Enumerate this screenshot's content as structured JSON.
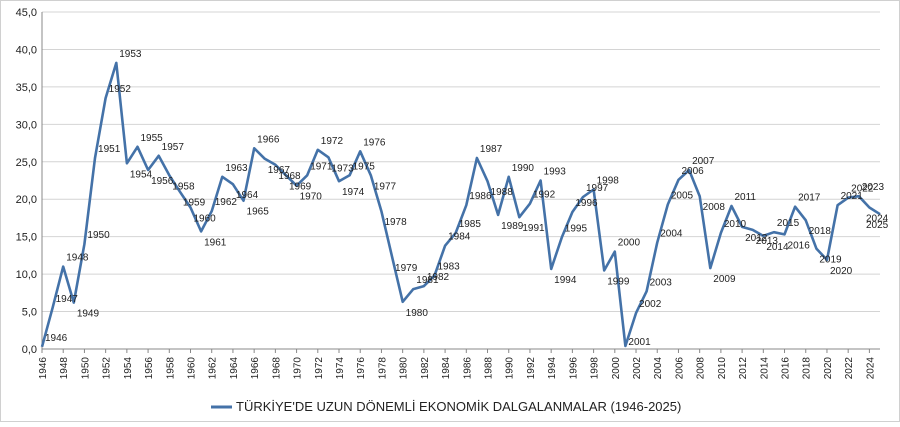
{
  "chart_data": {
    "type": "line",
    "legend": {
      "label": "TÜRKİYE'DE UZUN DÖNEMLİ EKONOMİK DALGALANMALAR (1946-2025)",
      "placement": "bottom-center"
    },
    "color": "#4472a8",
    "grid": true,
    "ylim": [
      0,
      45
    ],
    "y_ticks": [
      "0,0",
      "5,0",
      "10,0",
      "15,0",
      "20,0",
      "25,0",
      "30,0",
      "35,0",
      "40,0",
      "45,0"
    ],
    "x_ticks": [
      "1946",
      "1948",
      "1950",
      "1952",
      "1954",
      "1956",
      "1958",
      "1960",
      "1962",
      "1964",
      "1966",
      "1968",
      "1970",
      "1972",
      "1974",
      "1976",
      "1978",
      "1980",
      "1982",
      "1984",
      "1986",
      "1988",
      "1990",
      "1992",
      "1994",
      "1996",
      "1998",
      "2000",
      "2002",
      "2004",
      "2006",
      "2008",
      "2010",
      "2012",
      "2014",
      "2016",
      "2018",
      "2020",
      "2022",
      "2024"
    ],
    "x": [
      1946,
      1947,
      1948,
      1949,
      1950,
      1951,
      1952,
      1953,
      1954,
      1955,
      1956,
      1957,
      1958,
      1959,
      1960,
      1961,
      1962,
      1963,
      1964,
      1965,
      1966,
      1967,
      1968,
      1969,
      1970,
      1971,
      1972,
      1973,
      1974,
      1975,
      1976,
      1977,
      1978,
      1979,
      1980,
      1981,
      1982,
      1983,
      1984,
      1985,
      1986,
      1987,
      1988,
      1989,
      1990,
      1991,
      1992,
      1993,
      1994,
      1995,
      1996,
      1997,
      1998,
      1999,
      2000,
      2001,
      2002,
      2003,
      2004,
      2005,
      2006,
      2007,
      2008,
      2009,
      2010,
      2011,
      2012,
      2013,
      2014,
      2015,
      2016,
      2017,
      2018,
      2019,
      2020,
      2021,
      2022,
      2023,
      2024,
      2025
    ],
    "values": [
      0.3,
      5.5,
      11.0,
      6.2,
      14.0,
      25.5,
      33.5,
      38.2,
      24.8,
      27.0,
      23.9,
      25.8,
      23.2,
      21.0,
      18.9,
      15.7,
      18.4,
      23.0,
      22.0,
      19.8,
      26.8,
      25.4,
      24.6,
      23.2,
      21.8,
      23.2,
      26.6,
      25.6,
      22.4,
      23.2,
      26.4,
      23.2,
      18.4,
      12.3,
      6.3,
      8.0,
      8.4,
      9.8,
      13.8,
      15.5,
      19.2,
      25.5,
      22.4,
      17.9,
      23.0,
      17.6,
      19.4,
      22.5,
      10.7,
      14.9,
      18.3,
      20.3,
      21.3,
      10.5,
      13.0,
      0.4,
      4.8,
      7.7,
      14.2,
      19.3,
      22.6,
      23.9,
      20.4,
      10.8,
      15.5,
      19.1,
      16.3,
      15.9,
      15.1,
      15.6,
      15.3,
      19.0,
      17.2,
      13.4,
      11.9,
      19.2,
      20.2,
      20.4,
      18.9,
      18.0
    ],
    "point_labels": [
      "1946",
      "1947",
      "1948",
      "1949",
      "1950",
      "1951",
      "1952",
      "1953",
      "1954",
      "1955",
      "1956",
      "1957",
      "1958",
      "1959",
      "1960",
      "1961",
      "1962",
      "1963",
      "1964",
      "1965",
      "1966",
      "1967",
      "1968",
      "1969",
      "1970",
      "1971",
      "1972",
      "1973",
      "1974",
      "1975",
      "1976",
      "1977",
      "1978",
      "1979",
      "1980",
      "1981",
      "1982",
      "1983",
      "1984",
      "1985",
      "1986",
      "1987",
      "1988",
      "1989",
      "1990",
      "1991",
      "1992",
      "1993",
      "1994",
      "1995",
      "1996",
      "1997",
      "1998",
      "1999",
      "2000",
      "2001",
      "2002",
      "2003",
      "2004",
      "2005",
      "2006",
      "2007",
      "2008",
      "2009",
      "2010",
      "2011",
      "2012",
      "2013",
      "2014",
      "2015",
      "2016",
      "2017",
      "2018",
      "2019",
      "2020",
      "2021",
      "2022",
      "2023",
      "2024",
      "2025"
    ]
  }
}
